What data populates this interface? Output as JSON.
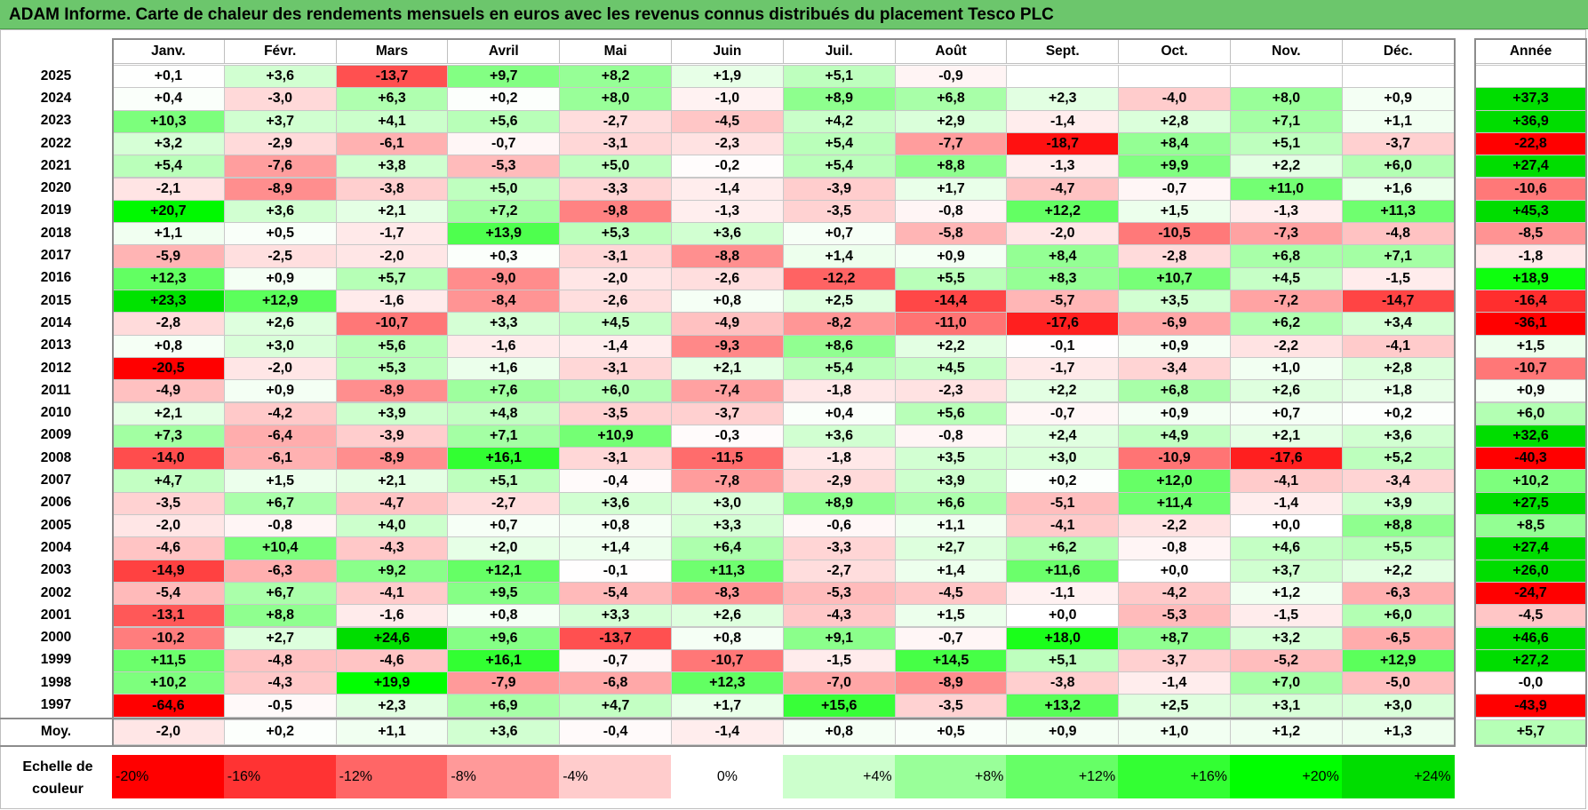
{
  "title": "ADAM Informe. Carte de chaleur des rendements mensuels en euros avec les revenus connus distribués du placement Tesco PLC",
  "chart_data": {
    "type": "heatmap",
    "title": "ADAM Informe. Carte de chaleur des rendements mensuels en euros avec les revenus connus distribués du placement Tesco PLC",
    "columns": [
      "Janv.",
      "Févr.",
      "Mars",
      "Avril",
      "Mai",
      "Juin",
      "Juil.",
      "Août",
      "Sept.",
      "Oct.",
      "Nov.",
      "Déc."
    ],
    "year_column": "Année",
    "rows": [
      {
        "label": "2025",
        "values": [
          "+0,1",
          "+3,6",
          "-13,7",
          "+9,7",
          "+8,2",
          "+1,9",
          "+5,1",
          "-0,9",
          "",
          "",
          "",
          ""
        ],
        "year": ""
      },
      {
        "label": "2024",
        "values": [
          "+0,4",
          "-3,0",
          "+6,3",
          "+0,2",
          "+8,0",
          "-1,0",
          "+8,9",
          "+6,8",
          "+2,3",
          "-4,0",
          "+8,0",
          "+0,9"
        ],
        "year": "+37,3"
      },
      {
        "label": "2023",
        "values": [
          "+10,3",
          "+3,7",
          "+4,1",
          "+5,6",
          "-2,7",
          "-4,5",
          "+4,2",
          "+2,9",
          "-1,4",
          "+2,8",
          "+7,1",
          "+1,1"
        ],
        "year": "+36,9"
      },
      {
        "label": "2022",
        "values": [
          "+3,2",
          "-2,9",
          "-6,1",
          "-0,7",
          "-3,1",
          "-2,3",
          "+5,4",
          "-7,7",
          "-18,7",
          "+8,4",
          "+5,1",
          "-3,7"
        ],
        "year": "-22,8"
      },
      {
        "label": "2021",
        "values": [
          "+5,4",
          "-7,6",
          "+3,8",
          "-5,3",
          "+5,0",
          "-0,2",
          "+5,4",
          "+8,8",
          "-1,3",
          "+9,9",
          "+2,2",
          "+6,0"
        ],
        "year": "+27,4"
      },
      {
        "label": "2020",
        "values": [
          "-2,1",
          "-8,9",
          "-3,8",
          "+5,0",
          "-3,3",
          "-1,4",
          "-3,9",
          "+1,7",
          "-4,7",
          "-0,7",
          "+11,0",
          "+1,6"
        ],
        "year": "-10,6"
      },
      {
        "label": "2019",
        "values": [
          "+20,7",
          "+3,6",
          "+2,1",
          "+7,2",
          "-9,8",
          "-1,3",
          "-3,5",
          "-0,8",
          "+12,2",
          "+1,5",
          "-1,3",
          "+11,3"
        ],
        "year": "+45,3"
      },
      {
        "label": "2018",
        "values": [
          "+1,1",
          "+0,5",
          "-1,7",
          "+13,9",
          "+5,3",
          "+3,6",
          "+0,7",
          "-5,8",
          "-2,0",
          "-10,5",
          "-7,3",
          "-4,8"
        ],
        "year": "-8,5"
      },
      {
        "label": "2017",
        "values": [
          "-5,9",
          "-2,5",
          "-2,0",
          "+0,3",
          "-3,1",
          "-8,8",
          "+1,4",
          "+0,9",
          "+8,4",
          "-2,8",
          "+6,8",
          "+7,1"
        ],
        "year": "-1,8"
      },
      {
        "label": "2016",
        "values": [
          "+12,3",
          "+0,9",
          "+5,7",
          "-9,0",
          "-2,0",
          "-2,6",
          "-12,2",
          "+5,5",
          "+8,3",
          "+10,7",
          "+4,5",
          "-1,5"
        ],
        "year": "+18,9"
      },
      {
        "label": "2015",
        "values": [
          "+23,3",
          "+12,9",
          "-1,6",
          "-8,4",
          "-2,6",
          "+0,8",
          "+2,5",
          "-14,4",
          "-5,7",
          "+3,5",
          "-7,2",
          "-14,7"
        ],
        "year": "-16,4"
      },
      {
        "label": "2014",
        "values": [
          "-2,8",
          "+2,6",
          "-10,7",
          "+3,3",
          "+4,5",
          "-4,9",
          "-8,2",
          "-11,0",
          "-17,6",
          "-6,9",
          "+6,2",
          "+3,4"
        ],
        "year": "-36,1"
      },
      {
        "label": "2013",
        "values": [
          "+0,8",
          "+3,0",
          "+5,6",
          "-1,6",
          "-1,4",
          "-9,3",
          "+8,6",
          "+2,2",
          "-0,1",
          "+0,9",
          "-2,2",
          "-4,1"
        ],
        "year": "+1,5"
      },
      {
        "label": "2012",
        "values": [
          "-20,5",
          "-2,0",
          "+5,3",
          "+1,6",
          "-3,1",
          "+2,1",
          "+5,4",
          "+4,5",
          "-1,7",
          "-3,4",
          "+1,0",
          "+2,8"
        ],
        "year": "-10,7"
      },
      {
        "label": "2011",
        "values": [
          "-4,9",
          "+0,9",
          "-8,9",
          "+7,6",
          "+6,0",
          "-7,4",
          "-1,8",
          "-2,3",
          "+2,2",
          "+6,8",
          "+2,6",
          "+1,8"
        ],
        "year": "+0,9"
      },
      {
        "label": "2010",
        "values": [
          "+2,1",
          "-4,2",
          "+3,9",
          "+4,8",
          "-3,5",
          "-3,7",
          "+0,4",
          "+5,6",
          "-0,7",
          "+0,9",
          "+0,7",
          "+0,2"
        ],
        "year": "+6,0"
      },
      {
        "label": "2009",
        "values": [
          "+7,3",
          "-6,4",
          "-3,9",
          "+7,1",
          "+10,9",
          "-0,3",
          "+3,6",
          "-0,8",
          "+2,4",
          "+4,9",
          "+2,1",
          "+3,6"
        ],
        "year": "+32,6"
      },
      {
        "label": "2008",
        "values": [
          "-14,0",
          "-6,1",
          "-8,9",
          "+16,1",
          "-3,1",
          "-11,5",
          "-1,8",
          "+3,5",
          "+3,0",
          "-10,9",
          "-17,6",
          "+5,2"
        ],
        "year": "-40,3"
      },
      {
        "label": "2007",
        "values": [
          "+4,7",
          "+1,5",
          "+2,1",
          "+5,1",
          "-0,4",
          "-7,8",
          "-2,9",
          "+3,9",
          "+0,2",
          "+12,0",
          "-4,1",
          "-3,4"
        ],
        "year": "+10,2"
      },
      {
        "label": "2006",
        "values": [
          "-3,5",
          "+6,7",
          "-4,7",
          "-2,7",
          "+3,6",
          "+3,0",
          "+8,9",
          "+6,6",
          "-5,1",
          "+11,4",
          "-1,4",
          "+3,9"
        ],
        "year": "+27,5"
      },
      {
        "label": "2005",
        "values": [
          "-2,0",
          "-0,8",
          "+4,0",
          "+0,7",
          "+0,8",
          "+3,3",
          "-0,6",
          "+1,1",
          "-4,1",
          "-2,2",
          "+0,0",
          "+8,8"
        ],
        "year": "+8,5"
      },
      {
        "label": "2004",
        "values": [
          "-4,6",
          "+10,4",
          "-4,3",
          "+2,0",
          "+1,4",
          "+6,4",
          "-3,3",
          "+2,7",
          "+6,2",
          "-0,8",
          "+4,6",
          "+5,5"
        ],
        "year": "+27,4"
      },
      {
        "label": "2003",
        "values": [
          "-14,9",
          "-6,3",
          "+9,2",
          "+12,1",
          "-0,1",
          "+11,3",
          "-2,7",
          "+1,4",
          "+11,6",
          "+0,0",
          "+3,7",
          "+2,2"
        ],
        "year": "+26,0"
      },
      {
        "label": "2002",
        "values": [
          "-5,4",
          "+6,7",
          "-4,1",
          "+9,5",
          "-5,4",
          "-8,3",
          "-5,3",
          "-4,5",
          "-1,1",
          "-4,2",
          "+1,2",
          "-6,3"
        ],
        "year": "-24,7"
      },
      {
        "label": "2001",
        "values": [
          "-13,1",
          "+8,8",
          "-1,6",
          "+0,8",
          "+3,3",
          "+2,6",
          "-4,3",
          "+1,5",
          "+0,0",
          "-5,3",
          "-1,5",
          "+6,0"
        ],
        "year": "-4,5"
      },
      {
        "label": "2000",
        "values": [
          "-10,2",
          "+2,7",
          "+24,6",
          "+9,6",
          "-13,7",
          "+0,8",
          "+9,1",
          "-0,7",
          "+18,0",
          "+8,7",
          "+3,2",
          "-6,5"
        ],
        "year": "+46,6"
      },
      {
        "label": "1999",
        "values": [
          "+11,5",
          "-4,8",
          "-4,6",
          "+16,1",
          "-0,7",
          "-10,7",
          "-1,5",
          "+14,5",
          "+5,1",
          "-3,7",
          "-5,2",
          "+12,9"
        ],
        "year": "+27,2"
      },
      {
        "label": "1998",
        "values": [
          "+10,2",
          "-4,3",
          "+19,9",
          "-7,9",
          "-6,8",
          "+12,3",
          "-7,0",
          "-8,9",
          "-3,8",
          "-1,4",
          "+7,0",
          "-5,0"
        ],
        "year": "-0,0"
      },
      {
        "label": "1997",
        "values": [
          "-64,6",
          "-0,5",
          "+2,3",
          "+6,9",
          "+4,7",
          "+1,7",
          "+15,6",
          "-3,5",
          "+13,2",
          "+2,5",
          "+3,1",
          "+3,0"
        ],
        "year": "-43,9"
      }
    ],
    "average": {
      "label": "Moy.",
      "values": [
        "-2,0",
        "+0,2",
        "+1,1",
        "+3,6",
        "-0,4",
        "-1,4",
        "+0,8",
        "+0,5",
        "+0,9",
        "+1,0",
        "+1,2",
        "+1,3"
      ],
      "year": "+5,7"
    },
    "color_scale": {
      "label": "Echelle de couleur",
      "stops": [
        {
          "label": "-20%",
          "value": -20,
          "color": "#ff0000"
        },
        {
          "label": "-16%",
          "value": -16,
          "color": "#ff3333"
        },
        {
          "label": "-12%",
          "value": -12,
          "color": "#ff6666"
        },
        {
          "label": "-8%",
          "value": -8,
          "color": "#ff9999"
        },
        {
          "label": "-4%",
          "value": -4,
          "color": "#ffcccc"
        },
        {
          "label": "0%",
          "value": 0,
          "color": "#ffffff"
        },
        {
          "label": "+4%",
          "value": 4,
          "color": "#ccffcc"
        },
        {
          "label": "+8%",
          "value": 8,
          "color": "#99ff99"
        },
        {
          "label": "+12%",
          "value": 12,
          "color": "#66ff66"
        },
        {
          "label": "+16%",
          "value": 16,
          "color": "#33ff33"
        },
        {
          "label": "+20%",
          "value": 20,
          "color": "#00ff00"
        },
        {
          "label": "+24%",
          "value": 24,
          "color": "#00dd00"
        }
      ]
    }
  }
}
